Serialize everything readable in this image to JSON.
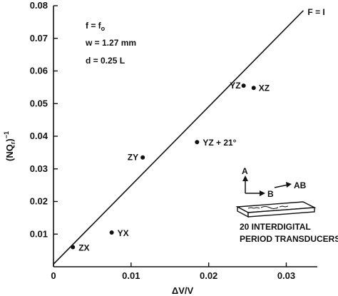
{
  "chart_data": {
    "type": "scatter",
    "xlabel": "ΔV/V",
    "ylabel": "(NQ_r)^-1",
    "xlim": [
      0,
      0.034
    ],
    "ylim": [
      0,
      0.08
    ],
    "x_ticks": [
      0,
      0.01,
      0.02,
      0.03
    ],
    "x_tick_labels": [
      "0",
      "0.01",
      "0.02",
      "0.03"
    ],
    "y_ticks": [
      0.01,
      0.02,
      0.03,
      0.04,
      0.05,
      0.06,
      0.07,
      0.08
    ],
    "y_tick_labels": [
      "0.01",
      "0.02",
      "0.03",
      "0.04",
      "0.05",
      "0.06",
      "0.07",
      "0.08"
    ],
    "grid": false,
    "points": [
      {
        "label": "ZX",
        "x": 0.0025,
        "y": 0.006
      },
      {
        "label": "YX",
        "x": 0.0075,
        "y": 0.0105
      },
      {
        "label": "ZY",
        "x": 0.0115,
        "y": 0.0335
      },
      {
        "label": "YZ + 21°",
        "x": 0.0185,
        "y": 0.0382
      },
      {
        "label": "YZ",
        "x": 0.0245,
        "y": 0.0555
      },
      {
        "label": "XZ",
        "x": 0.0258,
        "y": 0.0548
      }
    ],
    "fit_line": {
      "label": "F = I",
      "x": [
        0,
        0.0322
      ],
      "y": [
        0.0008,
        0.0785
      ]
    },
    "annotations": {
      "f_eq": "f = f",
      "f_sub": "o",
      "w_eq": "w = 1.27 mm",
      "d_eq": "d = 0.25 L",
      "axis_a": "A",
      "axis_b": "B",
      "axis_ab": "AB",
      "caption_line1": "20 INTERDIGITAL",
      "caption_line2": "PERIOD TRANSDUCERS"
    }
  }
}
